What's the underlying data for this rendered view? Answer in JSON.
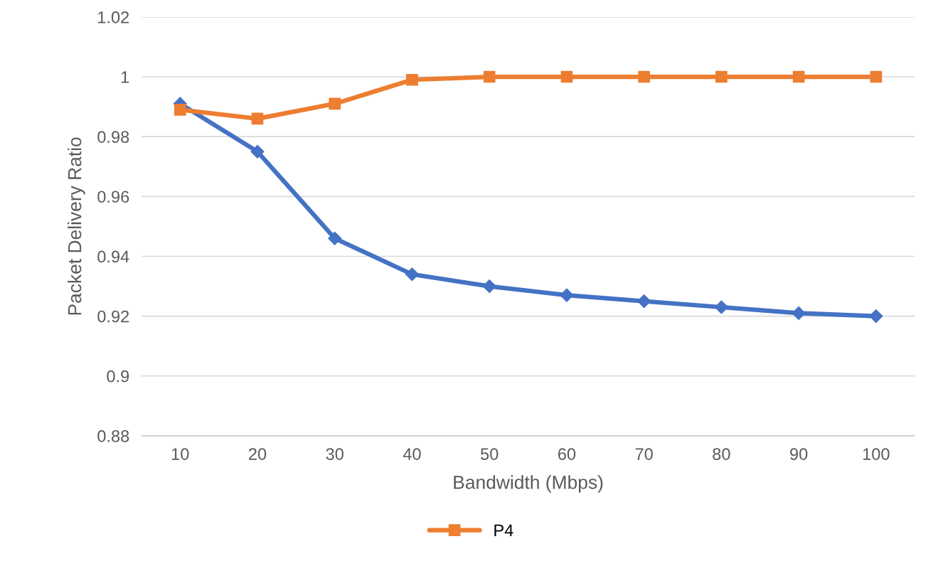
{
  "chart_data": {
    "type": "line",
    "xlabel": "Bandwidth (Mbps)",
    "ylabel": "Packet Delivery Ratio",
    "categories": [
      "10",
      "20",
      "30",
      "40",
      "50",
      "60",
      "70",
      "80",
      "90",
      "100"
    ],
    "series": [
      {
        "color": "#4472c4",
        "marker": "diamond",
        "values": [
          0.991,
          0.975,
          0.946,
          0.934,
          0.93,
          0.927,
          0.925,
          0.923,
          0.921,
          0.92
        ]
      },
      {
        "name": "P4",
        "color": "#ed7d31",
        "marker": "square",
        "values": [
          0.989,
          0.986,
          0.991,
          0.999,
          1.0,
          1.0,
          1.0,
          1.0,
          1.0,
          1.0
        ]
      }
    ],
    "ylim": [
      0.88,
      1.02
    ],
    "yticks": [
      {
        "value": 0.88,
        "label": "0.88"
      },
      {
        "value": 0.9,
        "label": "0.9"
      },
      {
        "value": 0.92,
        "label": "0.92"
      },
      {
        "value": 0.94,
        "label": "0.94"
      },
      {
        "value": 0.96,
        "label": "0.96"
      },
      {
        "value": 0.98,
        "label": "0.98"
      },
      {
        "value": 1.0,
        "label": "1"
      },
      {
        "value": 1.02,
        "label": "1.02"
      }
    ],
    "grid": "y",
    "legend": "bottom",
    "line_style": "solid"
  }
}
